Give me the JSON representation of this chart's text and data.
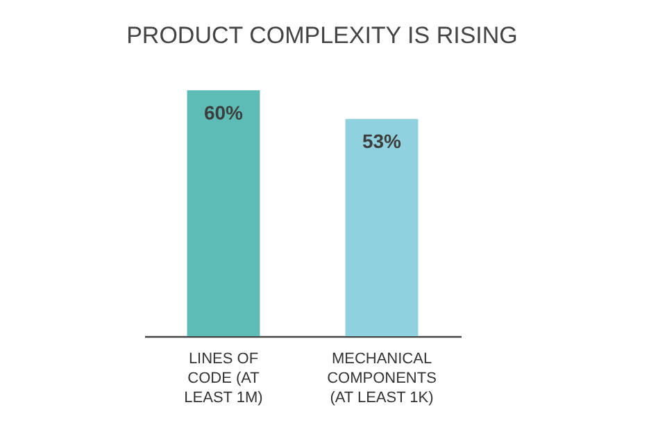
{
  "chart_data": {
    "type": "bar",
    "title": "PRODUCT COMPLEXITY IS RISING",
    "categories": [
      "LINES OF CODE (AT LEAST 1M)",
      "MECHANICAL COMPONENTS (AT LEAST 1K)"
    ],
    "values": [
      60,
      53
    ],
    "colors": [
      "#5dbcb5",
      "#8fd1df"
    ],
    "value_labels": [
      "60%",
      "53%"
    ]
  }
}
